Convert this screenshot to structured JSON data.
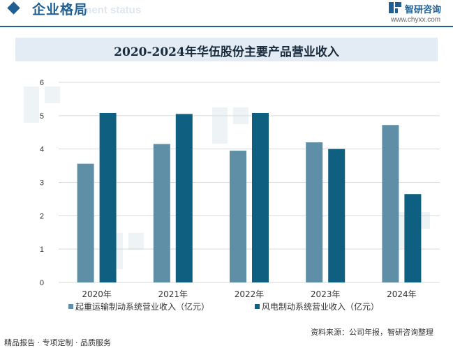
{
  "header": {
    "section_title": "企业格局",
    "section_subtitle": "ment status",
    "brand_name": "智研咨询",
    "brand_url": "www.chyxx.com"
  },
  "chart_data": {
    "type": "bar",
    "title": "2020-2024年华伍股份主要产品营业收入",
    "categories": [
      "2020年",
      "2021年",
      "2022年",
      "2023年",
      "2024年"
    ],
    "series": [
      {
        "name": "起重运输制动系统营业收入（亿元）",
        "values": [
          3.56,
          4.15,
          3.95,
          4.2,
          4.72
        ],
        "color": "#5e8fa6"
      },
      {
        "name": "风电制动系统营业收入（亿元）",
        "values": [
          5.08,
          5.05,
          5.08,
          4.0,
          2.65
        ],
        "color": "#0e5f80"
      }
    ],
    "ylim": [
      0,
      6
    ],
    "yticks": [
      "0",
      "1",
      "2",
      "3",
      "4",
      "5",
      "6"
    ],
    "grid": true,
    "legend_position": "bottom"
  },
  "footer": {
    "left_text": "精品报告 · 专项定制 · 品质服务",
    "source_text": "资料来源：公司年报，智研咨询整理"
  }
}
